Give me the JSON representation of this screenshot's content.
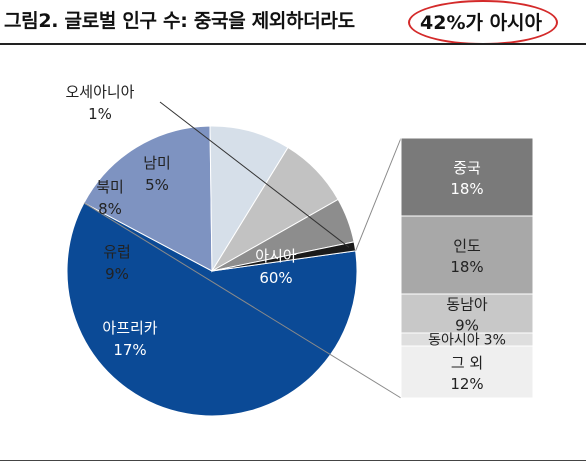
{
  "title": {
    "main": "그림2. 글로벌 인구 수: 중국을 제외하더라도",
    "highlight": "42%가 아시아"
  },
  "colors": {
    "asia": "#0b4a96",
    "africa": "#7e93c1",
    "europe": "#d6dfe9",
    "north_america": "#c2c2c2",
    "south_america": "#8d8d8d",
    "oceania": "#1a1a1a",
    "highlight_ring": "#d42a2a",
    "china_bar": "#7a7a7a",
    "india_bar": "#a8a8a8",
    "sea_bar": "#c8c8c8",
    "west_asia_bar": "#dedede",
    "other_bar": "#efefef"
  },
  "chart_data": [
    {
      "type": "pie",
      "title": "",
      "slices": [
        {
          "key": "asia",
          "label": "아시아",
          "value": 60,
          "value_text": "60%"
        },
        {
          "key": "africa",
          "label": "아프리카",
          "value": 17,
          "value_text": "17%"
        },
        {
          "key": "europe",
          "label": "유럽",
          "value": 9,
          "value_text": "9%"
        },
        {
          "key": "north_america",
          "label": "북미",
          "value": 8,
          "value_text": "8%"
        },
        {
          "key": "south_america",
          "label": "남미",
          "value": 5,
          "value_text": "5%"
        },
        {
          "key": "oceania",
          "label": "오세아니아",
          "value": 1,
          "value_text": "1%"
        }
      ]
    },
    {
      "type": "bar",
      "stacked": true,
      "title": "",
      "segments": [
        {
          "key": "china_bar",
          "label": "중국",
          "value": 18,
          "value_text": "18%"
        },
        {
          "key": "india_bar",
          "label": "인도",
          "value": 18,
          "value_text": "18%"
        },
        {
          "key": "sea_bar",
          "label": "동남아",
          "value": 9,
          "value_text": "9%"
        },
        {
          "key": "west_asia_bar",
          "label": "동아시아",
          "value": 3,
          "value_text": "3%"
        },
        {
          "key": "other_bar",
          "label": "그 외",
          "value": 12,
          "value_text": "12%"
        }
      ]
    }
  ]
}
